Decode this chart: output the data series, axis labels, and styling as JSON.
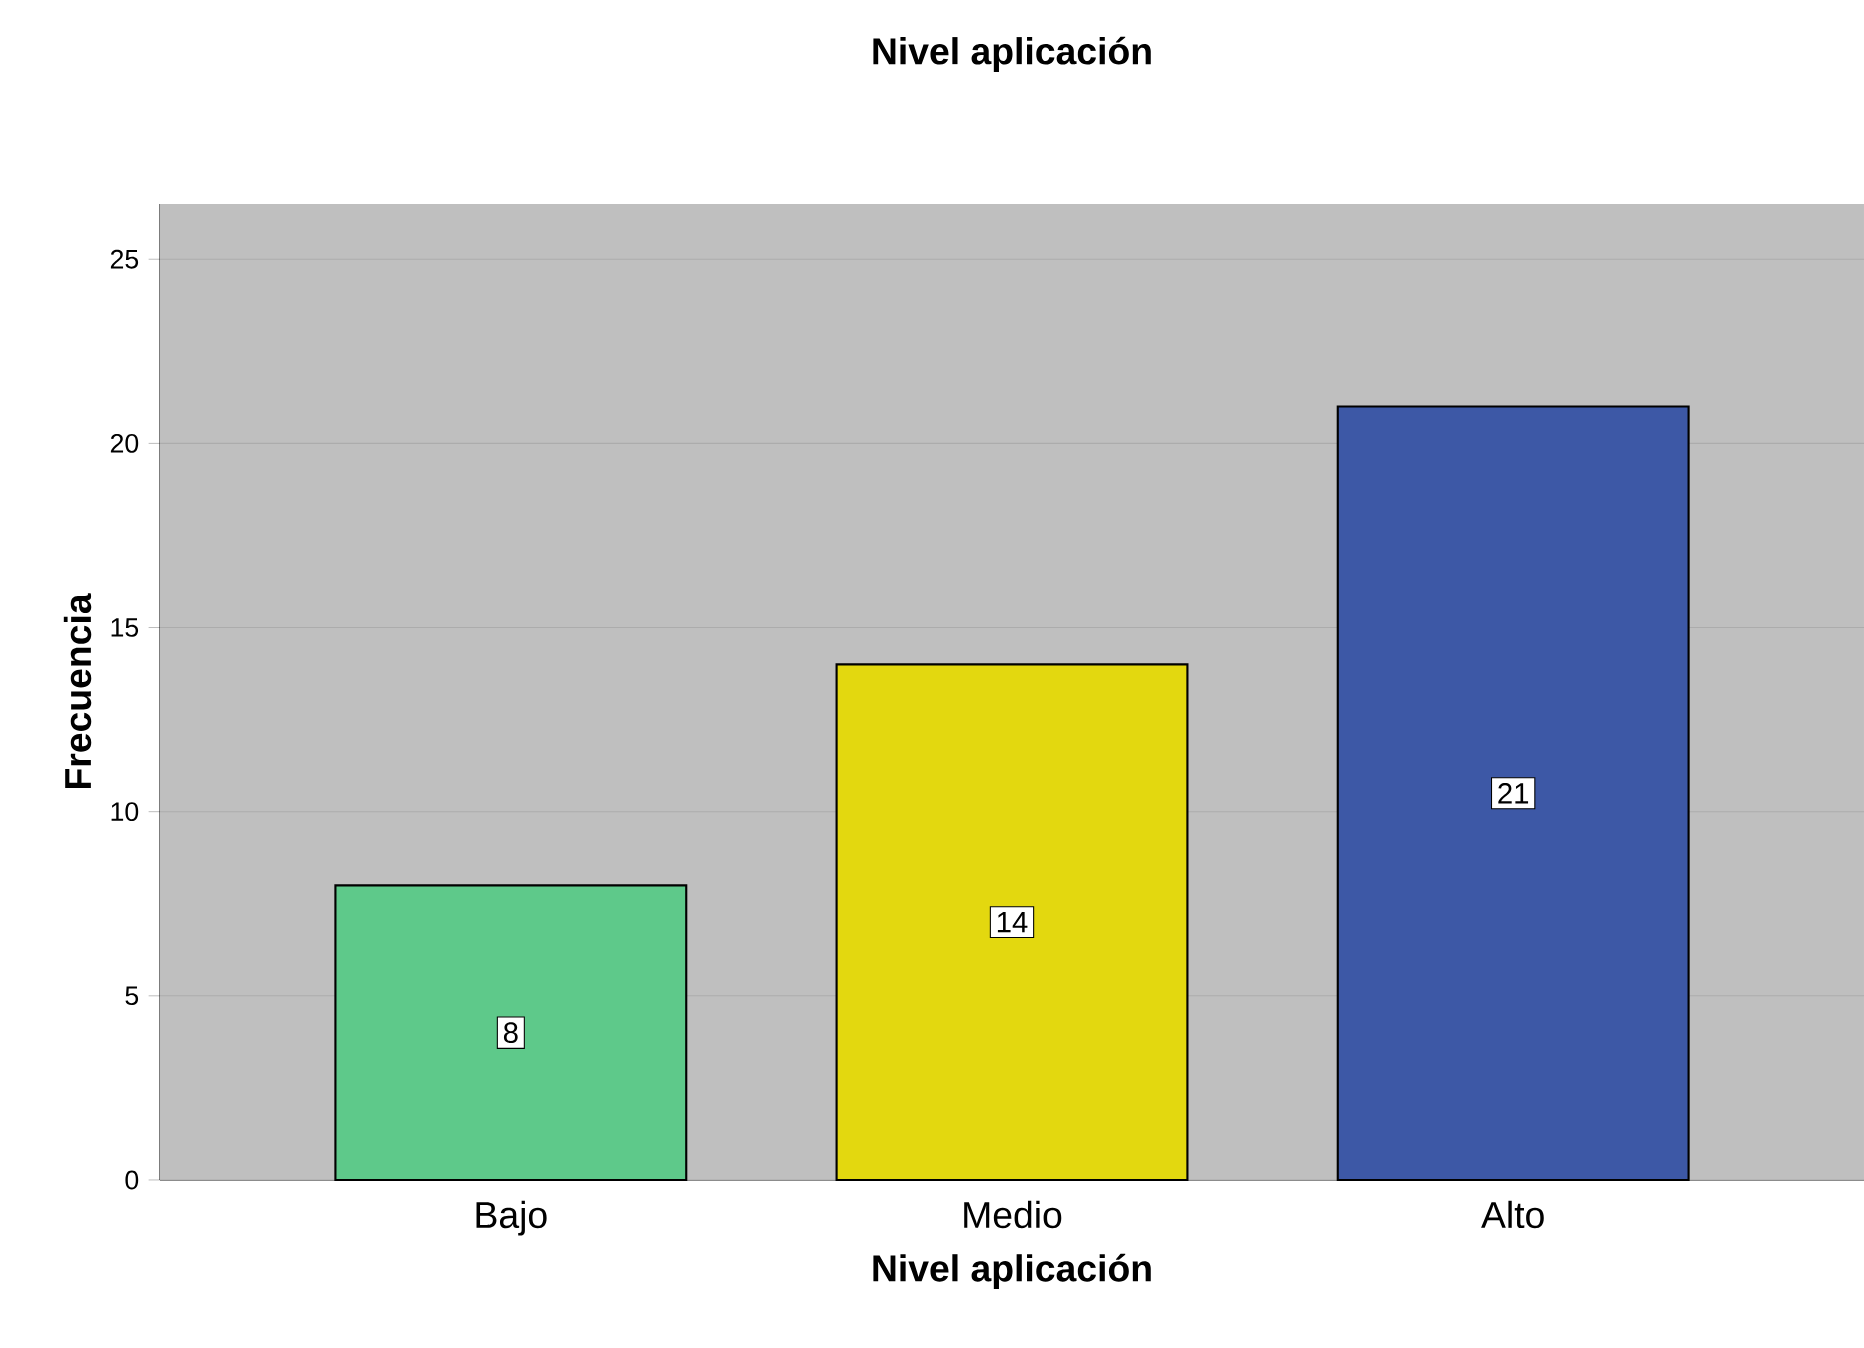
{
  "chart_data": {
    "type": "bar",
    "title": "Nivel aplicación",
    "xlabel": "Nivel aplicación",
    "ylabel": "Frecuencia",
    "categories": [
      "Bajo",
      "Medio",
      "Alto"
    ],
    "values": [
      8,
      14,
      21
    ],
    "colors": [
      "#5ec98a",
      "#e3d80f",
      "#3d58a6"
    ],
    "ylim": [
      0,
      26.5
    ],
    "yticks": [
      0,
      5,
      10,
      15,
      20,
      25
    ],
    "grid": "y",
    "data_labels": true
  }
}
